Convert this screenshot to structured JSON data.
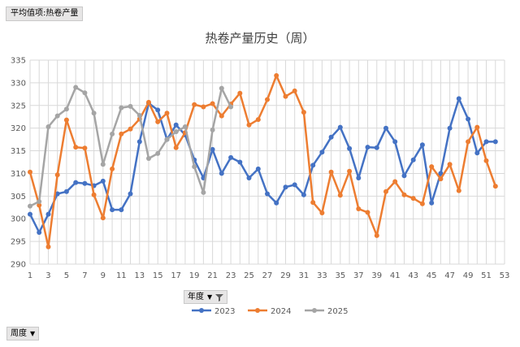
{
  "report_filter": {
    "label": "平均值项:热卷产量"
  },
  "axis_field_button": {
    "label": "年度"
  },
  "row_field_button": {
    "label": "周度"
  },
  "colors": {
    "2023": "#4472c4",
    "2024": "#ed7d31",
    "2025": "#a5a5a5"
  },
  "chart_data": {
    "type": "line",
    "title": "热卷产量历史（周）",
    "xlabel": "",
    "ylabel": "",
    "ylim": [
      290,
      335
    ],
    "y_ticks": [
      290,
      295,
      300,
      305,
      310,
      315,
      320,
      325,
      330,
      335
    ],
    "x_ticks": [
      1,
      3,
      5,
      7,
      9,
      11,
      13,
      15,
      17,
      19,
      21,
      23,
      25,
      27,
      29,
      31,
      33,
      35,
      37,
      39,
      41,
      43,
      45,
      47,
      49,
      51,
      53
    ],
    "xlim": [
      1,
      53
    ],
    "grid": true,
    "legend_position": "bottom",
    "series": [
      {
        "name": "2023",
        "x": [
          1,
          2,
          3,
          4,
          5,
          6,
          7,
          8,
          9,
          10,
          11,
          12,
          13,
          14,
          15,
          16,
          17,
          18,
          19,
          20,
          21,
          22,
          23,
          24,
          25,
          26,
          27,
          28,
          29,
          30,
          31,
          32,
          33,
          34,
          35,
          36,
          37,
          38,
          39,
          40,
          41,
          42,
          43,
          44,
          45,
          46,
          47,
          48,
          49,
          50,
          51,
          52
        ],
        "values": [
          301,
          297,
          301,
          305.5,
          306,
          308,
          307.8,
          307.3,
          308.3,
          302,
          302,
          305.5,
          317,
          325.5,
          324,
          317.5,
          320.7,
          318.5,
          313,
          309,
          315.3,
          310,
          313.5,
          312.5,
          309,
          311,
          305.5,
          303.5,
          307,
          307.5,
          305.3,
          311.8,
          314.7,
          318,
          320.2,
          315.5,
          309,
          315.8,
          315.7,
          320,
          317,
          309.5,
          313,
          316.3,
          303.5,
          310,
          320,
          326.5,
          322,
          314.5,
          317,
          317
        ]
      },
      {
        "name": "2024",
        "x": [
          1,
          2,
          3,
          4,
          5,
          6,
          7,
          8,
          9,
          10,
          11,
          12,
          13,
          14,
          15,
          16,
          17,
          18,
          19,
          20,
          21,
          22,
          23,
          24,
          25,
          26,
          27,
          28,
          29,
          30,
          31,
          32,
          33,
          34,
          35,
          36,
          37,
          38,
          39,
          40,
          41,
          42,
          43,
          44,
          45,
          46,
          47,
          48,
          49,
          50,
          51,
          52
        ],
        "values": [
          310.3,
          303,
          293.8,
          309.7,
          321.8,
          315.8,
          315.6,
          305.3,
          300.2,
          311,
          318.7,
          319.8,
          322,
          325.7,
          321.4,
          323.3,
          315.7,
          319,
          325.2,
          324.7,
          325.4,
          322.7,
          325.3,
          327.7,
          320.7,
          321.9,
          326.3,
          331.6,
          327,
          328.2,
          323.5,
          303.6,
          301.3,
          310.3,
          305.2,
          310.5,
          302.2,
          301.4,
          296.3,
          306,
          308.2,
          305.3,
          304.5,
          303.3,
          311.5,
          308.8,
          312,
          306.2,
          317,
          320.2,
          312.8,
          307.2
        ]
      },
      {
        "name": "2025",
        "x": [
          1,
          2,
          3,
          4,
          5,
          6,
          7,
          8,
          9,
          10,
          11,
          12,
          13,
          14,
          15,
          16,
          17,
          18,
          19,
          20,
          21,
          22,
          23,
          24
        ],
        "values": [
          302.8,
          303.8,
          320.3,
          322.7,
          324.2,
          329,
          327.8,
          323.3,
          312,
          318.7,
          324.5,
          324.8,
          322.8,
          313.3,
          314.4,
          317.5,
          319.2,
          320.3,
          311.5,
          305.8,
          319.6,
          328.8,
          324.7,
          null
        ]
      }
    ]
  }
}
